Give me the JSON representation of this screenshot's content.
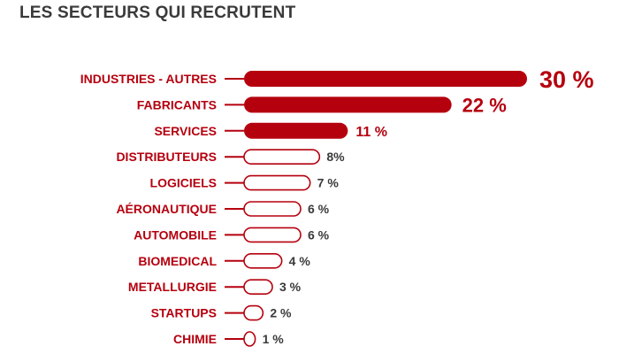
{
  "title": "LES SECTEURS QUI RECRUTENT",
  "colors": {
    "accent": "#b5000e",
    "title": "#3a3a3a",
    "background": "#ffffff"
  },
  "chart_data": {
    "type": "bar",
    "orientation": "horizontal",
    "title": "LES SECTEURS QUI RECRUTENT",
    "categories": [
      "INDUSTRIES - AUTRES",
      "FABRICANTS",
      "SERVICES",
      "DISTRIBUTEURS",
      "LOGICIELS",
      "AÉRONAUTIQUE",
      "AUTOMOBILE",
      "BIOMEDICAL",
      "METALLURGIE",
      "STARTUPS",
      "CHIMIE"
    ],
    "values": [
      30,
      22,
      11,
      8,
      7,
      6,
      6,
      4,
      3,
      2,
      1
    ],
    "value_labels": [
      "30 %",
      "22 %",
      "11 %",
      "8%",
      "7 %",
      "6 %",
      "6 %",
      "4 %",
      "3 %",
      "2 %",
      "1 %"
    ],
    "highlighted": [
      true,
      true,
      true,
      false,
      false,
      false,
      false,
      false,
      false,
      false,
      false
    ],
    "xlim": [
      0,
      30
    ],
    "grid": false,
    "legend": "none",
    "xlabel": "",
    "ylabel": ""
  }
}
